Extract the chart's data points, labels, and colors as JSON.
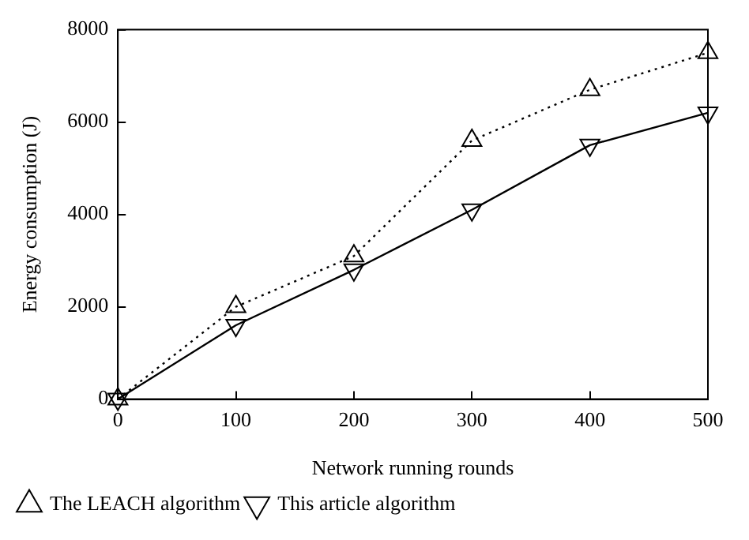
{
  "chart_data": {
    "type": "line",
    "xlabel": "Network running rounds",
    "ylabel": "Energy consumption (J)",
    "x": [
      0,
      100,
      200,
      300,
      400,
      500
    ],
    "series": [
      {
        "name": "The LEACH algorithm",
        "color": "#000000",
        "values": [
          0,
          2000,
          3100,
          5600,
          6700,
          7500
        ],
        "marker": "triangle",
        "line_style": "dotted"
      },
      {
        "name": "This article algorithm",
        "color": "#000000",
        "values": [
          0,
          1600,
          2800,
          4100,
          5500,
          6200
        ],
        "marker": "triangle-down",
        "line_style": "solid"
      }
    ],
    "xlim": [
      0,
      500
    ],
    "xticks": [
      0,
      100,
      200,
      300,
      400,
      500
    ],
    "ylim": [
      0,
      8000
    ],
    "yticks": [
      0,
      2000,
      4000,
      6000,
      8000
    ],
    "grid": false,
    "legend": "bottom left"
  }
}
